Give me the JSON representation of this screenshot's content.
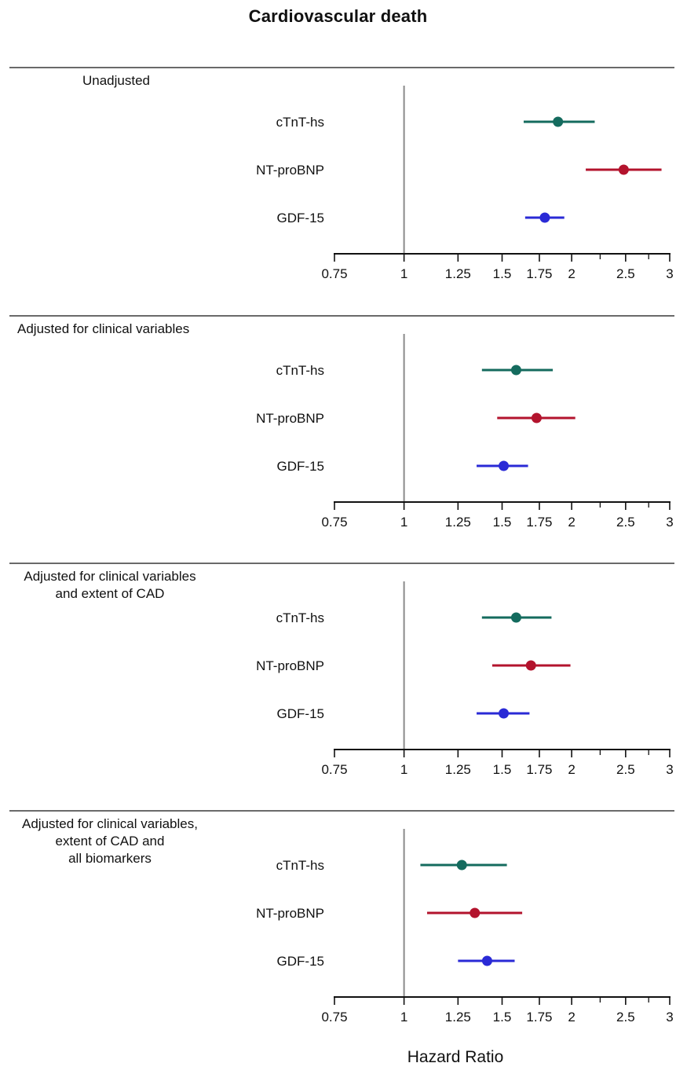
{
  "colors": {
    "cTnT-hs": "#146b5e",
    "NT-proBNP": "#b3132d",
    "GDF-15": "#2a2ad6",
    "reference_line": "#8a8a8a",
    "axis": "#111111"
  },
  "chart_data": {
    "type": "forest",
    "title": "Cardiovascular death",
    "xlabel": "Hazard Ratio",
    "x_scale": "log",
    "xlim": [
      0.75,
      3
    ],
    "reference_value": 1,
    "ticks": [
      0.75,
      1,
      1.25,
      1.5,
      1.75,
      2,
      2.5,
      3
    ],
    "tick_labels": [
      "0.75",
      "1",
      "1.25",
      "1.5",
      "1.75",
      "2",
      "2.5",
      "3"
    ],
    "minor_ticks": [
      2.25,
      2.75
    ],
    "grid": false,
    "panels": [
      {
        "title_lines": [
          "Unadjusted"
        ],
        "rows": [
          {
            "label": "cTnT-hs",
            "hr": 1.89,
            "lo": 1.64,
            "hi": 2.2
          },
          {
            "label": "NT-proBNP",
            "hr": 2.48,
            "lo": 2.12,
            "hi": 2.9
          },
          {
            "label": "GDF-15",
            "hr": 1.79,
            "lo": 1.65,
            "hi": 1.94
          }
        ]
      },
      {
        "title_lines": [
          "Adjusted for clinical variables"
        ],
        "rows": [
          {
            "label": "cTnT-hs",
            "hr": 1.59,
            "lo": 1.38,
            "hi": 1.85
          },
          {
            "label": "NT-proBNP",
            "hr": 1.73,
            "lo": 1.47,
            "hi": 2.03
          },
          {
            "label": "GDF-15",
            "hr": 1.51,
            "lo": 1.35,
            "hi": 1.67
          }
        ]
      },
      {
        "title_lines": [
          "Adjusted for clinical variables",
          "and extent of CAD"
        ],
        "rows": [
          {
            "label": "cTnT-hs",
            "hr": 1.59,
            "lo": 1.38,
            "hi": 1.84
          },
          {
            "label": "NT-proBNP",
            "hr": 1.69,
            "lo": 1.44,
            "hi": 1.99
          },
          {
            "label": "GDF-15",
            "hr": 1.51,
            "lo": 1.35,
            "hi": 1.68
          }
        ]
      },
      {
        "title_lines": [
          "Adjusted for clinical variables,",
          "extent of CAD and",
          "all biomarkers"
        ],
        "rows": [
          {
            "label": "cTnT-hs",
            "hr": 1.27,
            "lo": 1.07,
            "hi": 1.53
          },
          {
            "label": "NT-proBNP",
            "hr": 1.34,
            "lo": 1.1,
            "hi": 1.63
          },
          {
            "label": "GDF-15",
            "hr": 1.41,
            "lo": 1.25,
            "hi": 1.58
          }
        ]
      }
    ]
  }
}
